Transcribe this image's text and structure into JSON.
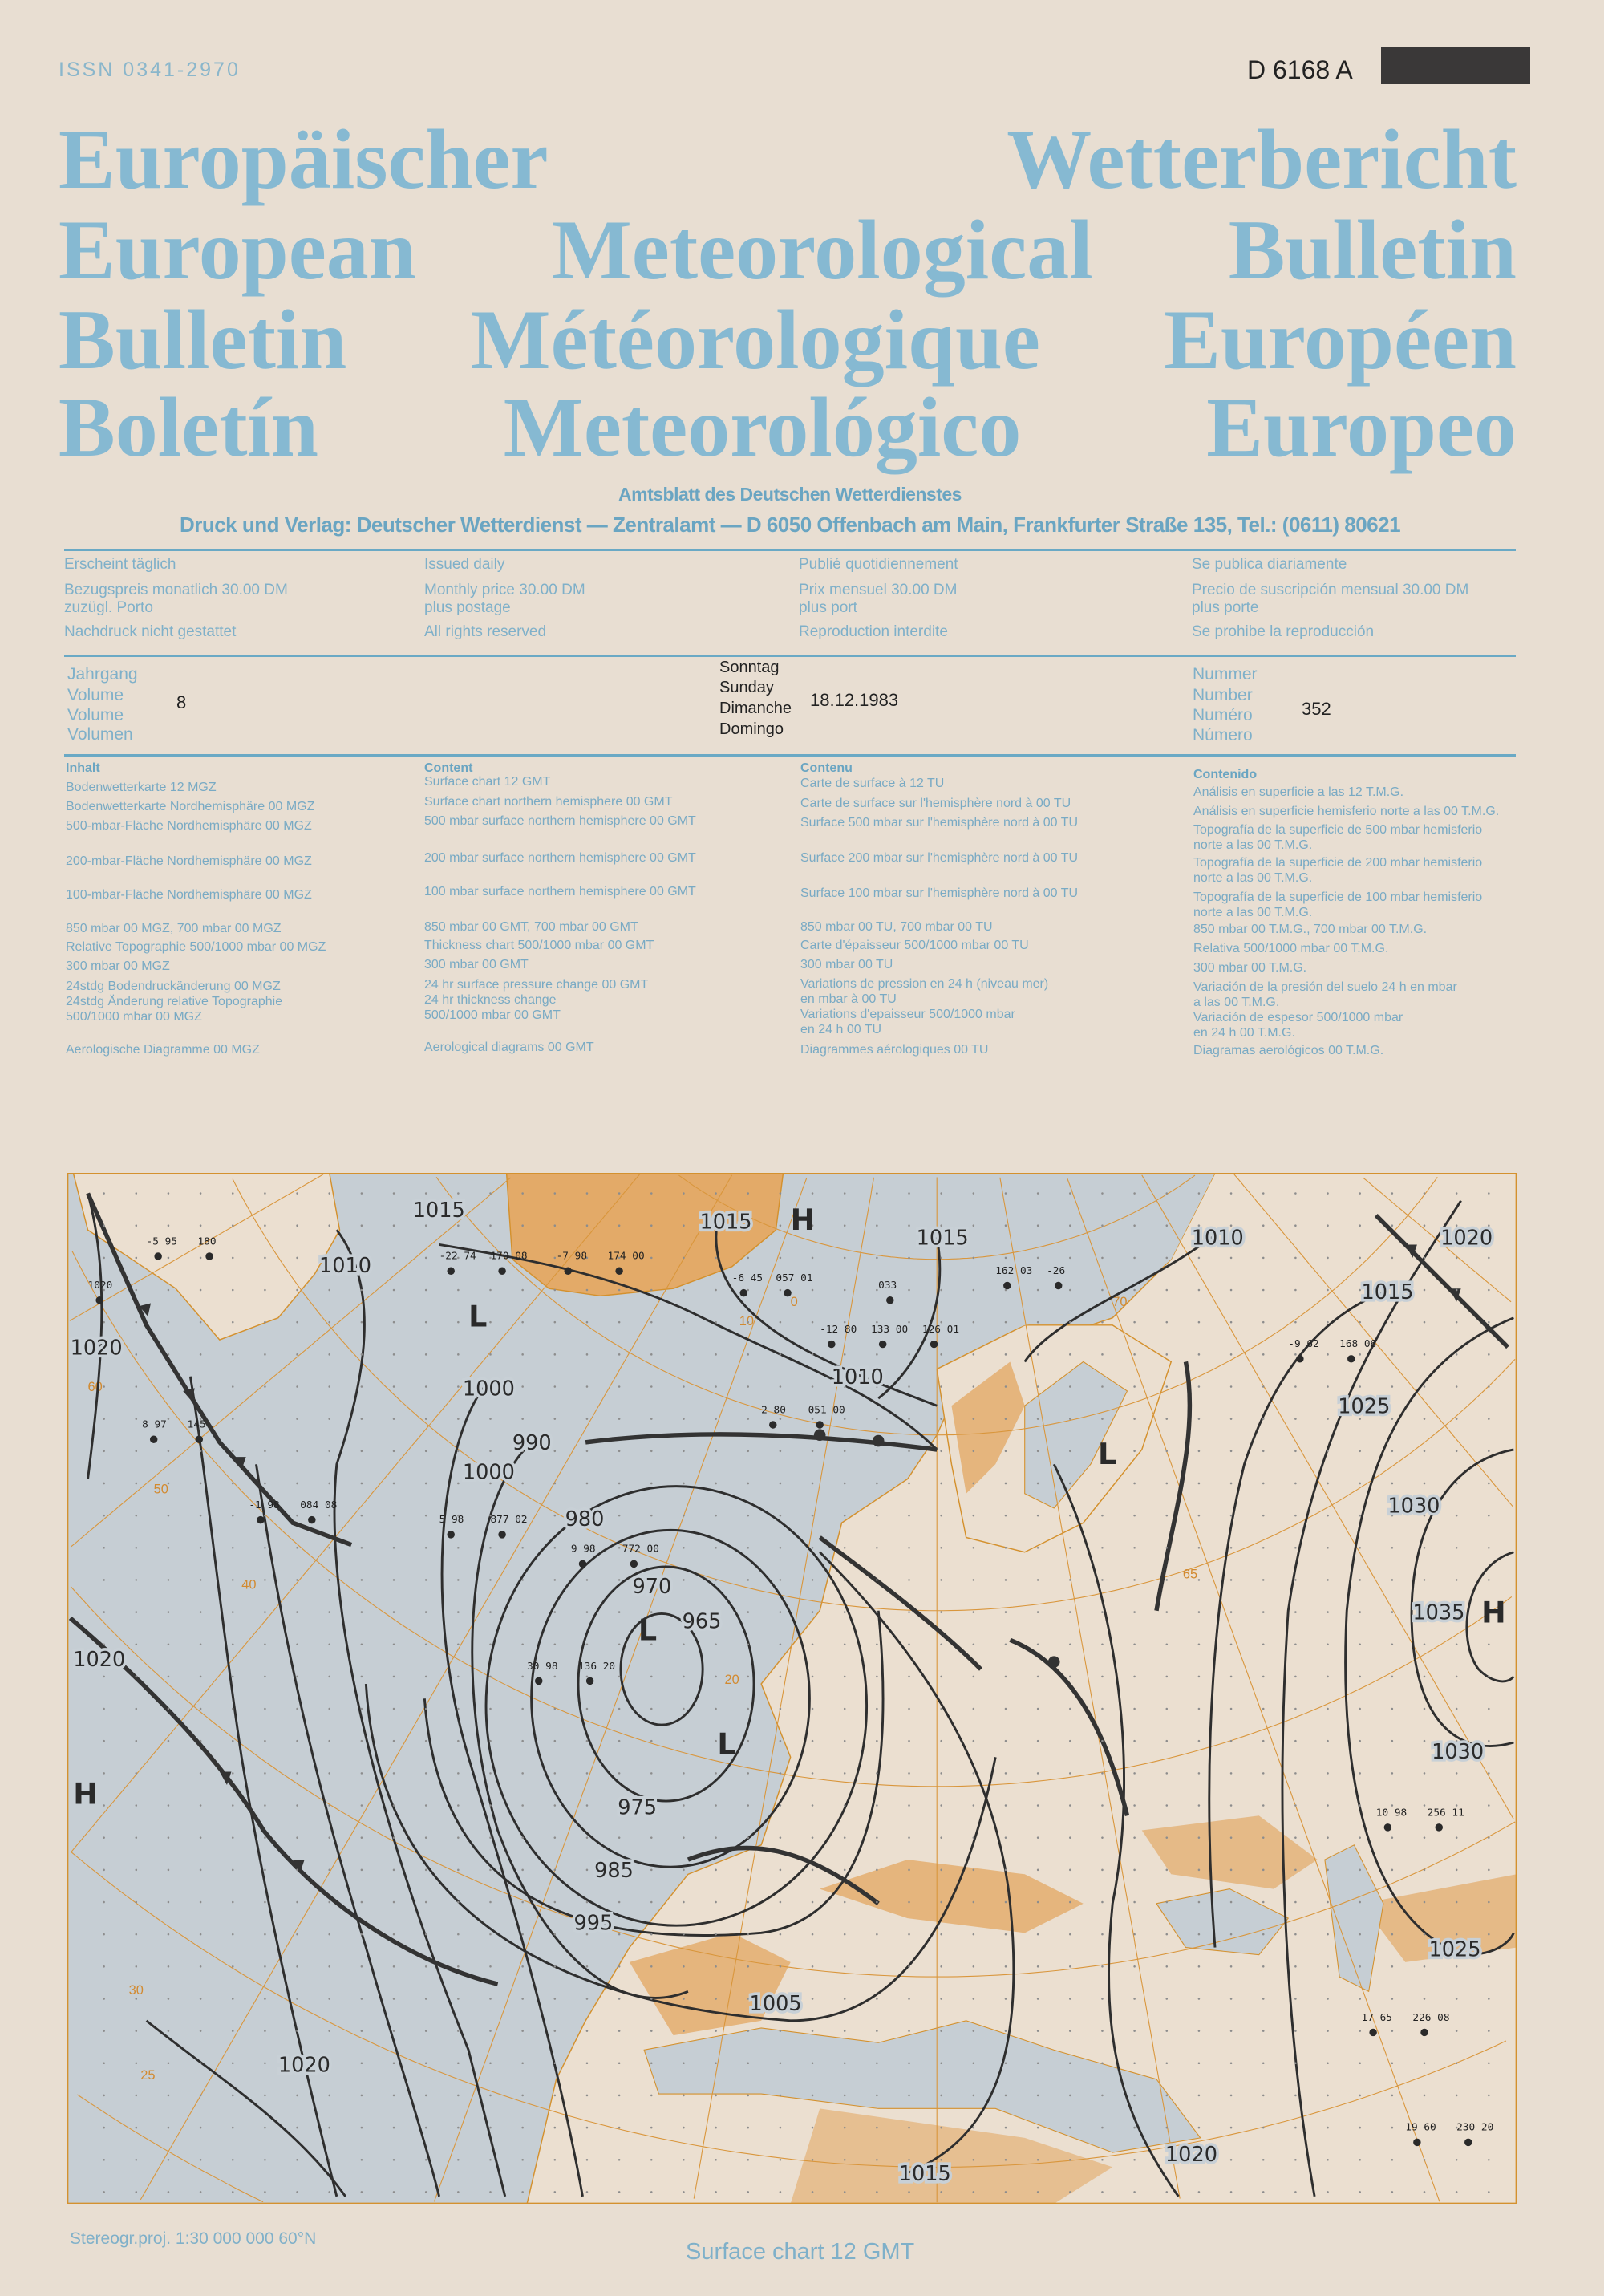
{
  "header": {
    "issn": "ISSN 0341-2970",
    "postal_code": "D 6168 A",
    "titles": [
      "Europäischer Wetterbericht",
      "European Meteorological Bulletin",
      "Bulletin Météorologique Européen",
      "Boletín Meteorológico Europeo"
    ],
    "official_gazette": "Amtsblatt des Deutschen Wetterdienstes",
    "publisher": "Druck und Verlag: Deutscher Wetterdienst — Zentralamt — D 6050 Offenbach am Main, Frankfurter Straße 135, Tel.: (0611) 80621"
  },
  "info": [
    [
      "Erscheint täglich",
      "Bezugspreis monatlich 30.00 DM",
      "zuzügl. Porto",
      "Nachdruck nicht gestattet"
    ],
    [
      "Issued daily",
      "Monthly price 30.00 DM",
      "plus postage",
      "All rights reserved"
    ],
    [
      "Publié quotidiennement",
      "Prix mensuel 30.00 DM",
      "plus port",
      "Reproduction interdite"
    ],
    [
      "Se publica diariamente",
      "Precio de suscripción mensual 30.00 DM",
      "plus porte",
      "Se prohibe la reproducción"
    ]
  ],
  "issue": {
    "volume_labels": [
      "Jahrgang",
      "Volume",
      "Volume",
      "Volumen"
    ],
    "volume": "8",
    "day_labels": [
      "Sonntag",
      "Sunday",
      "Dimanche",
      "Domingo"
    ],
    "date": "18.12.1983",
    "number_labels": [
      "Nummer",
      "Number",
      "Numéro",
      "Número"
    ],
    "number": "352"
  },
  "contents": [
    {
      "heading": "Inhalt",
      "items": [
        "Bodenwetterkarte 12 MGZ",
        "Bodenwetterkarte Nordhemisphäre 00 MGZ",
        "500-mbar-Fläche Nordhemisphäre 00 MGZ",
        "200-mbar-Fläche Nordhemisphäre 00 MGZ",
        "100-mbar-Fläche Nordhemisphäre 00 MGZ",
        "850 mbar 00 MGZ, 700 mbar 00 MGZ",
        "Relative Topographie 500/1000 mbar 00 MGZ",
        "300 mbar 00 MGZ",
        "24stdg Bodendruckänderung 00 MGZ",
        "24stdg Änderung relative Topographie",
        "500/1000 mbar 00 MGZ",
        "Aerologische Diagramme 00 MGZ"
      ]
    },
    {
      "heading": "Content",
      "items": [
        "Surface chart 12 GMT",
        "Surface chart northern hemisphere 00 GMT",
        "500 mbar surface northern hemisphere 00 GMT",
        "200 mbar surface northern hemisphere 00 GMT",
        "100 mbar surface northern hemisphere 00 GMT",
        "850 mbar 00 GMT, 700 mbar 00 GMT",
        "Thickness chart 500/1000 mbar 00 GMT",
        "300 mbar 00 GMT",
        "24 hr surface pressure change 00 GMT",
        "24 hr thickness change",
        "500/1000 mbar 00 GMT",
        "Aerological diagrams 00 GMT"
      ]
    },
    {
      "heading": "Contenu",
      "items": [
        "Carte de surface à 12 TU",
        "Carte de surface sur l'hemisphère nord à 00 TU",
        "Surface 500 mbar sur l'hemisphère nord à 00 TU",
        "Surface 200 mbar sur l'hemisphère nord à 00 TU",
        "Surface 100 mbar sur l'hemisphère nord à 00 TU",
        "850 mbar 00 TU, 700 mbar 00 TU",
        "Carte d'épaisseur 500/1000 mbar 00 TU",
        "300 mbar 00 TU",
        "Variations de pression en 24 h (niveau mer)",
        "en mbar à 00 TU",
        "Variations d'epaisseur 500/1000 mbar",
        "en 24 h 00 TU",
        "Diagrammes aérologiques 00 TU"
      ]
    },
    {
      "heading": "Contenido",
      "items": [
        "Análisis en superficie a las 12 T.M.G.",
        "Análisis en superficie hemisferio norte a las 00 T.M.G.",
        "Topografía de la superficie de 500 mbar hemisferio",
        "norte a las 00 T.M.G.",
        "Topografía de la superficie de 200 mbar hemisferio",
        "norte a las 00 T.M.G.",
        "Topografía de la superficie de 100 mbar hemisferio",
        "norte a las 00 T.M.G.",
        "850 mbar 00 T.M.G., 700 mbar 00 T.M.G.",
        "Relativa 500/1000 mbar 00 T.M.G.",
        "300 mbar 00 T.M.G.",
        "Variación de la presión del suelo 24 h en mbar",
        "a las 00 T.M.G.",
        "Variación de espesor 500/1000 mbar",
        "en 24 h 00 T.M.G.",
        "Diagramas aerológicos 00 T.M.G."
      ]
    }
  ],
  "map": {
    "colors": {
      "sea": "#c6ced4",
      "land": "#ebdfd0",
      "high_land": "#e3aa68",
      "grid": "#d9963c",
      "isobar": "#2e2e2e"
    },
    "isobar_labels": [
      "1015",
      "1015",
      "1015",
      "1010",
      "1020",
      "1015",
      "1010",
      "1020",
      "1010",
      "1000",
      "1000",
      "990",
      "980",
      "970",
      "965",
      "975",
      "985",
      "995",
      "1005",
      "1025",
      "1030",
      "1035",
      "1030",
      "1025",
      "1020",
      "1020",
      "1015",
      "1020"
    ],
    "pressure_centers": [
      "H",
      "H",
      "H",
      "L",
      "L",
      "L",
      "L"
    ],
    "grid_labels": [
      "60",
      "50",
      "40",
      "30",
      "25",
      "70",
      "65",
      "10",
      "0",
      "20"
    ],
    "stations": [
      "1020",
      "-5 95",
      "180",
      "-22 74",
      "170 08",
      "-7 98",
      "174 00",
      "057 01",
      "-6 45",
      "033",
      "-12 80",
      "133 00",
      "126 01",
      "162 03",
      "-26",
      "2 80",
      "051 00",
      "8 97",
      "145",
      "-1 98",
      "084 08",
      "5 98",
      "877 02",
      "9 98",
      "772 00",
      "30 98",
      "136 20",
      "-9 62",
      "168 06",
      "10 98",
      "256 11",
      "17 65",
      "226 08",
      "19 60",
      "230 20"
    ]
  },
  "footer": {
    "projection": "Stereogr.proj. 1:30 000 000    60°N",
    "caption": "Surface chart  12 GMT"
  }
}
